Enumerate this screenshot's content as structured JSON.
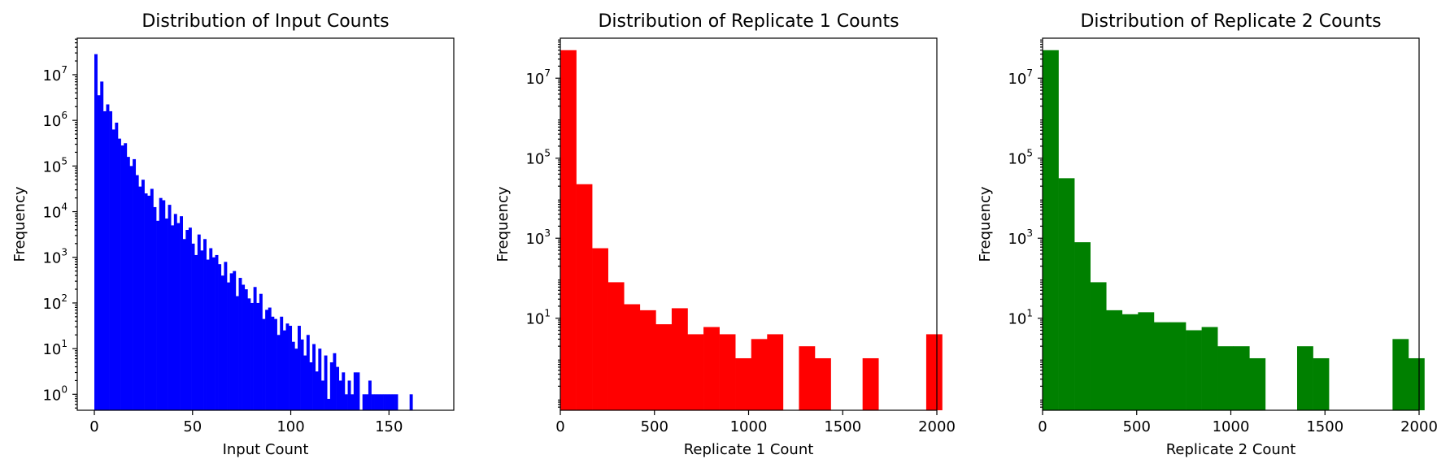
{
  "chart_data": [
    {
      "type": "bar",
      "histogram": true,
      "title": "Distribution of Input Counts",
      "xlabel": "Input Count",
      "ylabel": "Frequency",
      "color": "#0000ff",
      "yscale": "log",
      "xlim": [
        -8.7,
        183
      ],
      "ylim_log10": [
        -0.35,
        7.8
      ],
      "xticks": [
        "0",
        "50",
        "100",
        "150"
      ],
      "xtick_values": [
        0,
        50,
        100,
        150
      ],
      "ytick_exponents": [
        0,
        1,
        2,
        3,
        4,
        5,
        6,
        7
      ],
      "bin_width": 1.5,
      "bin_starts": [
        0,
        1.5,
        3,
        4.5,
        6,
        7.5,
        9,
        10.5,
        12,
        13.5,
        15,
        16.5,
        18,
        19.5,
        21,
        22.5,
        24,
        25.5,
        27,
        28.5,
        30,
        31.5,
        33,
        34.5,
        36,
        37.5,
        39,
        40.5,
        42,
        43.5,
        45,
        46.5,
        48,
        49.5,
        51,
        52.5,
        54,
        55.5,
        57,
        58.5,
        60,
        61.5,
        63,
        64.5,
        66,
        67.5,
        69,
        70.5,
        72,
        73.5,
        75,
        76.5,
        78,
        79.5,
        81,
        82.5,
        84,
        85.5,
        87,
        88.5,
        90,
        91.5,
        93,
        94.5,
        96,
        97.5,
        99,
        100.5,
        102,
        103.5,
        105,
        106.5,
        108,
        109.5,
        111,
        112.5,
        114,
        115.5,
        117,
        118.5,
        120,
        121.5,
        123,
        124.5,
        126,
        127.5,
        129,
        130.5,
        132,
        133.5,
        135,
        136.5,
        138,
        139.5,
        141,
        142.5,
        144,
        145.5,
        147,
        148.5,
        150,
        151.5,
        153,
        154.5,
        156,
        157.5,
        159,
        160.5,
        162,
        163.5,
        165,
        166.5,
        168,
        169.5,
        171,
        172.5
      ],
      "values_log10": [
        7.45,
        6.55,
        6.85,
        6.2,
        6.35,
        6.2,
        5.8,
        5.95,
        5.6,
        5.45,
        5.5,
        5.2,
        5.0,
        5.15,
        4.8,
        4.55,
        4.7,
        4.4,
        4.35,
        4.5,
        4.1,
        3.8,
        4.3,
        4.25,
        3.85,
        4.15,
        3.7,
        3.95,
        3.75,
        3.9,
        3.4,
        3.6,
        3.65,
        3.3,
        3.05,
        3.5,
        3.15,
        3.4,
        2.95,
        3.2,
        3.0,
        3.05,
        2.85,
        2.6,
        2.9,
        2.45,
        2.65,
        2.7,
        2.15,
        2.55,
        2.4,
        2.3,
        2.1,
        2.0,
        2.35,
        2.0,
        2.2,
        1.65,
        1.85,
        1.9,
        1.7,
        1.65,
        1.3,
        1.7,
        1.4,
        1.55,
        1.5,
        1.15,
        1.0,
        1.5,
        1.2,
        0.85,
        1.3,
        0.7,
        1.1,
        0.5,
        1.0,
        0.3,
        0.85,
        -0.1,
        0.7,
        0.9,
        0.6,
        0.3,
        0.48,
        0.0,
        0.3,
        0.0,
        0.48,
        0.48,
        null,
        0.0,
        0.0,
        0.3,
        0.0,
        0.0,
        0.0,
        0.0,
        0.0,
        0.0,
        0.0,
        0.0,
        0.0,
        null,
        null,
        null,
        null,
        0.0,
        null,
        null,
        null,
        null,
        null,
        null,
        null,
        null,
        0.0,
        null
      ]
    },
    {
      "type": "bar",
      "histogram": true,
      "title": "Distribution of Replicate 1 Counts",
      "xlabel": "Replicate 1 Count",
      "ylabel": "Frequency",
      "color": "#ff0000",
      "yscale": "log",
      "xlim": [
        0,
        2000
      ],
      "ylim_log10": [
        -1.3,
        8.0
      ],
      "xticks": [
        "0",
        "500",
        "1000",
        "1500",
        "2000"
      ],
      "xtick_values": [
        0,
        500,
        1000,
        1500,
        2000
      ],
      "ytick_exponents": [
        1,
        3,
        5,
        7
      ],
      "bin_width": 84.5,
      "bin_starts": [
        0,
        84.5,
        169,
        253.5,
        338,
        422.5,
        507,
        591.5,
        676,
        760.5,
        845,
        929.5,
        1014,
        1098.5,
        1183,
        1267.5,
        1352,
        1436.5,
        1521,
        1605.5,
        1690,
        1774.5,
        1859,
        1943.5
      ],
      "values_log10": [
        7.7,
        4.35,
        2.75,
        1.9,
        1.35,
        1.2,
        0.85,
        1.25,
        0.6,
        0.78,
        0.6,
        0.0,
        0.48,
        0.6,
        null,
        0.3,
        0.0,
        null,
        null,
        0.0,
        null,
        null,
        null,
        0.6
      ]
    },
    {
      "type": "bar",
      "histogram": true,
      "title": "Distribution of Replicate 2 Counts",
      "xlabel": "Replicate 2 Count",
      "ylabel": "Frequency",
      "color": "#008000",
      "yscale": "log",
      "xlim": [
        0,
        2000
      ],
      "ylim_log10": [
        -1.3,
        8.0
      ],
      "xticks": [
        "0",
        "500",
        "1000",
        "1500",
        "2000"
      ],
      "xtick_values": [
        0,
        500,
        1000,
        1500,
        2000
      ],
      "ytick_exponents": [
        1,
        3,
        5,
        7
      ],
      "bin_width": 84.5,
      "bin_starts": [
        0,
        84.5,
        169,
        253.5,
        338,
        422.5,
        507,
        591.5,
        676,
        760.5,
        845,
        929.5,
        1014,
        1098.5,
        1183,
        1267.5,
        1352,
        1436.5,
        1521,
        1605.5,
        1690,
        1774.5,
        1859,
        1943.5
      ],
      "values_log10": [
        7.7,
        4.5,
        2.9,
        1.9,
        1.2,
        1.1,
        1.15,
        0.9,
        0.9,
        0.7,
        0.78,
        0.3,
        0.3,
        0.0,
        null,
        null,
        0.3,
        0.0,
        null,
        null,
        null,
        null,
        0.48,
        0.0
      ]
    }
  ]
}
